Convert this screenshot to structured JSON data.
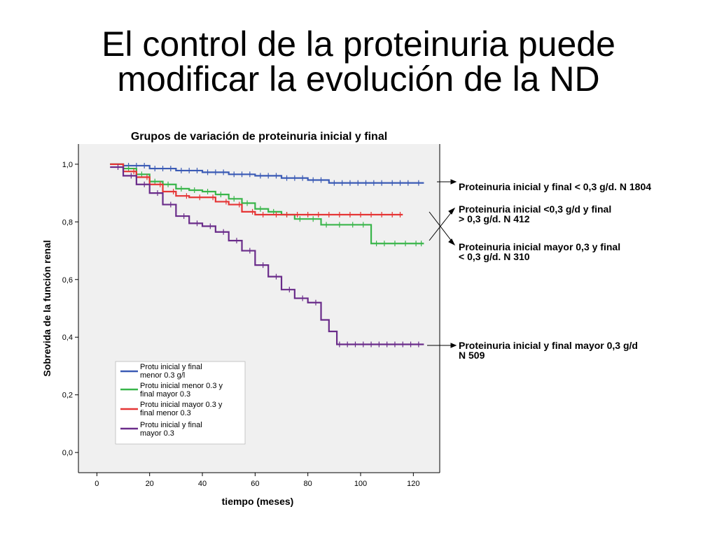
{
  "slide": {
    "title_line1": "El control de la proteinuria puede",
    "title_line2": "modificar la evolución de la ND"
  },
  "chart_data": {
    "type": "line",
    "title": "Grupos de variación de proteinuria inicial y final",
    "xlabel": "tiempo (meses)",
    "ylabel": "Sobrevida de la función renal",
    "xlim": [
      -7,
      130
    ],
    "ylim": [
      -0.07,
      1.07
    ],
    "xticks": [
      "0",
      "20",
      "40",
      "60",
      "80",
      "100",
      "120"
    ],
    "yticks": [
      "0,0",
      "0,2",
      "0,4",
      "0,6",
      "0,8",
      "1,0"
    ],
    "grid": false,
    "legend_position": "bottom-left",
    "series": [
      {
        "name_line1": "Protu inicial y final",
        "name_line2": "menor 0.3 g/l",
        "color": "#3b5bb5",
        "x": [
          5,
          10,
          20,
          30,
          40,
          50,
          60,
          70,
          80,
          86,
          88,
          100,
          110,
          124
        ],
        "y": [
          1.0,
          0.995,
          0.985,
          0.978,
          0.972,
          0.965,
          0.96,
          0.952,
          0.945,
          0.945,
          0.935,
          0.935,
          0.935,
          0.935
        ],
        "censor_x": [
          12,
          15,
          18,
          22,
          25,
          28,
          32,
          35,
          38,
          42,
          45,
          48,
          52,
          55,
          58,
          62,
          65,
          68,
          72,
          75,
          78,
          82,
          85,
          90,
          93,
          96,
          99,
          102,
          105,
          108,
          112,
          115,
          118,
          122
        ]
      },
      {
        "name_line1": "Protu inicial menor 0.3 y",
        "name_line2": "final mayor 0.3",
        "color": "#39b54a",
        "x": [
          5,
          10,
          15,
          20,
          25,
          30,
          35,
          40,
          45,
          50,
          55,
          60,
          65,
          70,
          75,
          80,
          85,
          90,
          95,
          100,
          104,
          110,
          124
        ],
        "y": [
          1.0,
          0.985,
          0.965,
          0.94,
          0.93,
          0.915,
          0.91,
          0.905,
          0.895,
          0.88,
          0.865,
          0.845,
          0.835,
          0.825,
          0.81,
          0.81,
          0.79,
          0.79,
          0.79,
          0.79,
          0.725,
          0.725,
          0.725
        ],
        "censor_x": [
          12,
          17,
          22,
          27,
          32,
          37,
          42,
          47,
          52,
          57,
          62,
          67,
          72,
          77,
          82,
          87,
          92,
          97,
          101,
          106,
          109,
          113,
          117,
          121,
          123
        ]
      },
      {
        "name_line1": "Protu inicial mayor 0.3 y",
        "name_line2": "final menor 0.3",
        "color": "#e53535",
        "x": [
          5,
          10,
          15,
          20,
          25,
          30,
          35,
          40,
          45,
          50,
          55,
          60,
          65,
          70,
          80,
          90,
          100,
          110,
          116
        ],
        "y": [
          1.0,
          0.975,
          0.955,
          0.93,
          0.905,
          0.89,
          0.885,
          0.885,
          0.87,
          0.86,
          0.835,
          0.825,
          0.825,
          0.825,
          0.825,
          0.825,
          0.825,
          0.825,
          0.825
        ],
        "censor_x": [
          14,
          19,
          24,
          29,
          34,
          39,
          44,
          49,
          54,
          59,
          63,
          68,
          72,
          76,
          80,
          84,
          88,
          92,
          96,
          100,
          104,
          108,
          112,
          115
        ]
      },
      {
        "name_line1": "Protu inicial y final",
        "name_line2": "mayor 0.3",
        "color": "#6a2c8a",
        "x": [
          5,
          10,
          15,
          20,
          25,
          30,
          35,
          40,
          45,
          50,
          55,
          60,
          65,
          70,
          75,
          80,
          85,
          88,
          91,
          95,
          100,
          110,
          124
        ],
        "y": [
          0.99,
          0.96,
          0.93,
          0.9,
          0.86,
          0.82,
          0.795,
          0.785,
          0.765,
          0.735,
          0.7,
          0.65,
          0.61,
          0.565,
          0.535,
          0.52,
          0.46,
          0.42,
          0.375,
          0.375,
          0.375,
          0.375,
          0.375
        ],
        "censor_x": [
          8,
          13,
          18,
          23,
          28,
          33,
          38,
          43,
          48,
          53,
          58,
          63,
          68,
          73,
          78,
          83,
          92,
          95,
          98,
          101,
          104,
          107,
          110,
          113,
          116,
          119,
          122
        ]
      }
    ]
  },
  "annotations": [
    {
      "line1": "Proteinuria inicial y final < 0,3 g/d. N 1804",
      "line2": ""
    },
    {
      "line1": "Proteinuria inicial <0,3 g/d y final",
      "line2": "> 0,3 g/d. N 412"
    },
    {
      "line1": "Proteinuria inicial mayor 0,3 y final",
      "line2": "< 0,3 g/d. N 310"
    },
    {
      "line1": "Proteinuria inicial y final mayor 0,3  g/d",
      "line2": "N 509"
    }
  ]
}
